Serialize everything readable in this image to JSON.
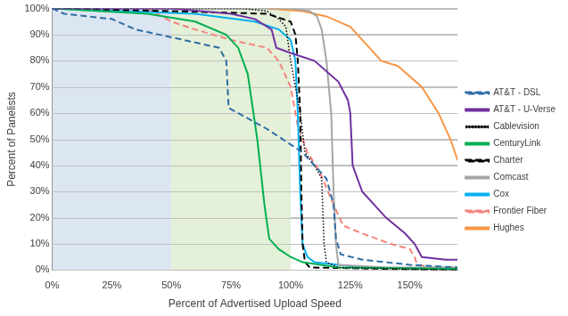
{
  "chart_data": {
    "type": "line",
    "x_label": "Percent of Advertised Upload Speed",
    "y_label": "Percent of Panelists",
    "xlim": [
      0,
      170
    ],
    "ylim": [
      0,
      100
    ],
    "xticks": [
      {
        "value": 0,
        "label": "0%"
      },
      {
        "value": 25,
        "label": "25%"
      },
      {
        "value": 50,
        "label": "50%"
      },
      {
        "value": 75,
        "label": "75%"
      },
      {
        "value": 100,
        "label": "100%"
      },
      {
        "value": 125,
        "label": "125%"
      },
      {
        "value": 150,
        "label": "150%"
      }
    ],
    "yticks": [
      {
        "value": 0,
        "label": "0%"
      },
      {
        "value": 10,
        "label": "10%"
      },
      {
        "value": 20,
        "label": "20%"
      },
      {
        "value": 30,
        "label": "30%"
      },
      {
        "value": 40,
        "label": "40%"
      },
      {
        "value": 50,
        "label": "50%"
      },
      {
        "value": 60,
        "label": "60%"
      },
      {
        "value": 70,
        "label": "70%"
      },
      {
        "value": 80,
        "label": "80%"
      },
      {
        "value": 90,
        "label": "90%"
      },
      {
        "value": 100,
        "label": "100%"
      }
    ],
    "grid": true,
    "legend": "right",
    "bands": [
      {
        "from": 0,
        "to": 50,
        "color": "#dce6f2"
      },
      {
        "from": 50,
        "to": 100,
        "color": "#e4f0d8"
      }
    ],
    "series": [
      {
        "name": "AT&T - DSL",
        "color": "#2e6da4",
        "line_style": "dashed",
        "x": [
          0,
          5,
          25,
          35,
          50,
          60,
          70,
          73,
          74,
          76,
          80,
          90,
          100,
          105,
          110,
          115,
          118,
          119,
          121,
          130,
          150,
          170
        ],
        "values": [
          100,
          98,
          96,
          92,
          89,
          87,
          85,
          80,
          62,
          61,
          59,
          54,
          48,
          45,
          40,
          35,
          25,
          12,
          6,
          4,
          2,
          1
        ]
      },
      {
        "name": "AT&T - U-Verse",
        "color": "#7030a0",
        "line_style": "solid",
        "x": [
          0,
          50,
          75,
          85,
          92,
          94,
          100,
          110,
          120,
          124,
          125,
          126,
          130,
          140,
          148,
          152,
          155,
          165,
          170
        ],
        "values": [
          100,
          100,
          98,
          96,
          92,
          85,
          83,
          80,
          72,
          65,
          60,
          40,
          30,
          20,
          14,
          10,
          5,
          4,
          4
        ]
      },
      {
        "name": "Cablevision",
        "color": "#000000",
        "line_style": "dotted",
        "x": [
          0,
          80,
          90,
          95,
          98,
          100,
          102,
          104,
          106,
          110,
          113,
          114,
          115,
          120,
          170
        ],
        "values": [
          100,
          100,
          99,
          96,
          93,
          80,
          70,
          60,
          45,
          40,
          35,
          10,
          3,
          1,
          0
        ]
      },
      {
        "name": "CenturyLink",
        "color": "#00b050",
        "line_style": "solid",
        "x": [
          0,
          40,
          60,
          73,
          78,
          82,
          86,
          89,
          91,
          95,
          100,
          105,
          120,
          170
        ],
        "values": [
          100,
          98,
          95,
          90,
          85,
          75,
          50,
          25,
          12,
          8,
          5,
          3,
          1,
          0.5
        ]
      },
      {
        "name": "Charter",
        "color": "#000000",
        "line_style": "dashed",
        "x": [
          5,
          50,
          90,
          100,
          102,
          103,
          104,
          104.5,
          105,
          106,
          108,
          170
        ],
        "values": [
          100,
          99,
          98,
          95,
          90,
          80,
          60,
          30,
          10,
          3,
          1,
          0
        ]
      },
      {
        "name": "Comcast",
        "color": "#a6a6a6",
        "line_style": "solid",
        "x": [
          0,
          100,
          108,
          111,
          113,
          115,
          117,
          118,
          119,
          120,
          140,
          170
        ],
        "values": [
          100,
          100,
          99,
          97,
          92,
          80,
          60,
          30,
          10,
          2,
          1,
          1
        ]
      },
      {
        "name": "Cox",
        "color": "#00b0f0",
        "line_style": "solid",
        "x": [
          0,
          60,
          85,
          95,
          100,
          102,
          103,
          104,
          105,
          107,
          110,
          130,
          170
        ],
        "values": [
          100,
          98,
          95,
          92,
          88,
          80,
          60,
          30,
          10,
          5,
          3,
          1,
          0.5
        ]
      },
      {
        "name": "Frontier Fiber",
        "color": "#f4837d",
        "line_style": "dashed",
        "x": [
          40,
          50,
          60,
          75,
          90,
          95,
          100,
          103,
          107,
          112,
          118,
          122,
          130,
          142,
          150,
          152,
          153,
          160,
          170
        ],
        "values": [
          100,
          95,
          92,
          88,
          85,
          80,
          70,
          55,
          45,
          38,
          25,
          17,
          14,
          10,
          8,
          5,
          2,
          1,
          1
        ]
      },
      {
        "name": "Hughes",
        "color": "#f79646",
        "line_style": "solid",
        "x": [
          90,
          105,
          115,
          125,
          133,
          138,
          145,
          155,
          162,
          167,
          170
        ],
        "values": [
          100,
          99,
          97,
          93,
          85,
          80,
          78,
          70,
          60,
          50,
          42
        ]
      }
    ]
  }
}
